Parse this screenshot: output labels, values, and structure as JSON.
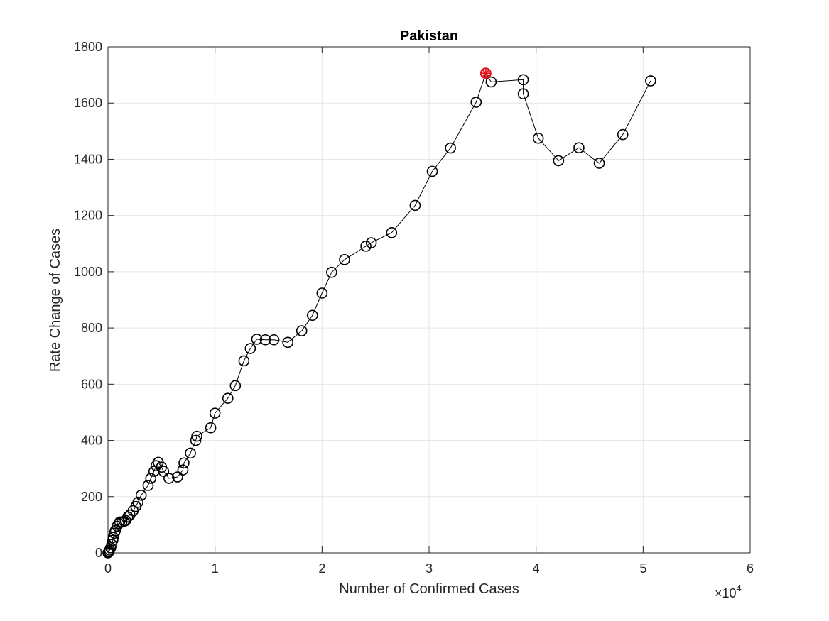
{
  "chart_data": {
    "type": "scatter",
    "title": "Pakistan",
    "xlabel": "Number of Confirmed Cases",
    "ylabel": "Rate Change of Cases",
    "x_exponent_label": "×10",
    "x_exponent_power": "4",
    "xlim": [
      0,
      60000
    ],
    "ylim": [
      0,
      1800
    ],
    "xticks": [
      0,
      10000,
      20000,
      30000,
      40000,
      50000,
      60000
    ],
    "xtick_labels": [
      "0",
      "1",
      "2",
      "3",
      "4",
      "5",
      "6"
    ],
    "yticks": [
      0,
      200,
      400,
      600,
      800,
      1000,
      1200,
      1400,
      1600,
      1800
    ],
    "ytick_labels": [
      "0",
      "200",
      "400",
      "600",
      "800",
      "1000",
      "1200",
      "1400",
      "1600",
      "1800"
    ],
    "grid": true,
    "marker": "circle",
    "line_color": "#000000",
    "highlight_color": "#e8101a",
    "series": [
      {
        "x": [
          0,
          50,
          100,
          150,
          250,
          350,
          450,
          500,
          600,
          700,
          850,
          1000,
          1100,
          1300,
          1500,
          1650,
          1850,
          2050,
          2350,
          2600,
          2800,
          3100,
          3750,
          4000,
          4300,
          4500,
          4700,
          5000,
          5200,
          5700,
          6500,
          7000,
          7100,
          7700,
          8200,
          8300,
          9600,
          10000,
          11200,
          11900,
          12700,
          13300,
          13900,
          14700,
          15500,
          16800,
          18100,
          19100,
          20000,
          20900,
          22100,
          24100,
          24600,
          26500,
          28700,
          30300,
          32000,
          34400,
          35300,
          35800,
          38800,
          38800,
          40200,
          42100,
          44000,
          45900,
          48100,
          50700
        ],
        "y": [
          0,
          2,
          5,
          10,
          18,
          30,
          45,
          55,
          70,
          80,
          95,
          105,
          110,
          110,
          112,
          115,
          128,
          135,
          150,
          165,
          180,
          205,
          240,
          265,
          290,
          310,
          322,
          305,
          290,
          265,
          270,
          295,
          320,
          355,
          400,
          415,
          445,
          497,
          550,
          595,
          683,
          727,
          760,
          758,
          758,
          749,
          790,
          845,
          924,
          998,
          1043,
          1091,
          1103,
          1139,
          1236,
          1357,
          1440,
          1603,
          1706,
          1675,
          1683,
          1633,
          1475,
          1395,
          1441,
          1386,
          1488,
          1679
        ]
      }
    ],
    "highlight_point": {
      "x": 35300,
      "y": 1706
    }
  }
}
